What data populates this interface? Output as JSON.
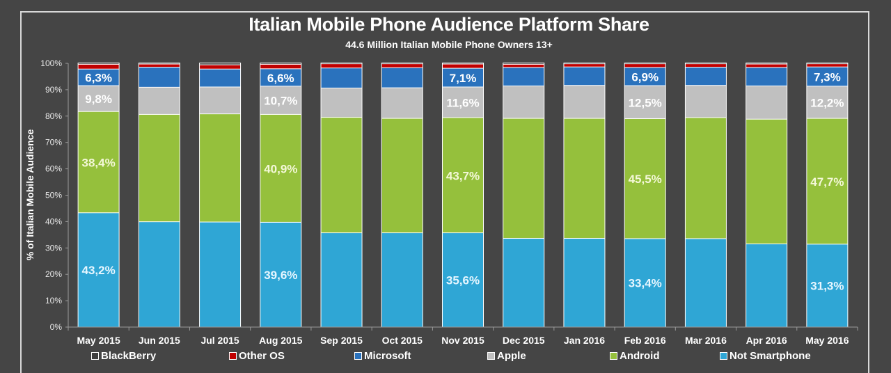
{
  "chart_data": {
    "type": "bar",
    "stacked": true,
    "title": "Italian Mobile Phone Audience Platform Share",
    "subtitle": "44.6 Million Italian Mobile Phone Owners 13+",
    "xlabel": "",
    "ylabel": "% of Italian Mobile Audience",
    "ylim": [
      0,
      100
    ],
    "yticks": [
      "0%",
      "10%",
      "20%",
      "30%",
      "40%",
      "50%",
      "60%",
      "70%",
      "80%",
      "90%",
      "100%"
    ],
    "grid": false,
    "legend_position": "bottom",
    "categories": [
      "May 2015",
      "Jun 2015",
      "Jul 2015",
      "Aug 2015",
      "Sep 2015",
      "Oct 2015",
      "Nov 2015",
      "Dec 2015",
      "Jan 2016",
      "Feb 2016",
      "Mar 2016",
      "Apr 2016",
      "May 2016"
    ],
    "series": [
      {
        "name": "Not Smartphone",
        "color": "#2fa6d5",
        "values": [
          43.2,
          39.8,
          39.7,
          39.6,
          35.6,
          35.6,
          35.6,
          33.5,
          33.5,
          33.4,
          33.4,
          31.4,
          31.3
        ],
        "labels": [
          "43,2%",
          null,
          null,
          "39,6%",
          null,
          null,
          "35,6%",
          null,
          null,
          "33,4%",
          null,
          null,
          "31,3%"
        ],
        "label_color": "#e6f6ff"
      },
      {
        "name": "Android",
        "color": "#95c03c",
        "values": [
          38.4,
          40.7,
          41.0,
          40.9,
          43.8,
          43.4,
          43.7,
          45.5,
          45.5,
          45.5,
          45.9,
          47.3,
          47.7
        ],
        "labels": [
          "38,4%",
          null,
          null,
          "40,9%",
          null,
          null,
          "43,7%",
          null,
          null,
          "45,5%",
          null,
          null,
          "47,7%"
        ],
        "label_color": "#f4f8d8"
      },
      {
        "name": "Apple",
        "color": "#c0c0c0",
        "values": [
          9.8,
          10.3,
          10.2,
          10.7,
          11.1,
          11.6,
          11.6,
          12.3,
          12.5,
          12.5,
          12.2,
          12.6,
          12.2
        ],
        "labels": [
          "9,8%",
          null,
          null,
          "10,7%",
          null,
          null,
          "11,6%",
          null,
          null,
          "12,5%",
          null,
          null,
          "12,2%"
        ],
        "label_color": "#ffffff"
      },
      {
        "name": "Microsoft",
        "color": "#2a72bd",
        "values": [
          6.3,
          7.6,
          6.8,
          6.6,
          7.6,
          7.6,
          7.1,
          7.0,
          7.0,
          6.9,
          6.9,
          7.0,
          7.3
        ],
        "labels": [
          "6,3%",
          null,
          null,
          "6,6%",
          null,
          null,
          "7,1%",
          null,
          null,
          "6,9%",
          null,
          null,
          "7,3%"
        ],
        "label_color": "#ffffff"
      },
      {
        "name": "Other OS",
        "color": "#c00000",
        "values": [
          1.8,
          1.2,
          1.6,
          1.7,
          1.6,
          1.5,
          1.6,
          1.2,
          1.2,
          1.4,
          1.3,
          1.3,
          1.2
        ],
        "labels": []
      },
      {
        "name": "BlackBerry",
        "color": "#404040",
        "values": [
          0.5,
          0.4,
          0.7,
          0.5,
          0.3,
          0.3,
          0.4,
          0.5,
          0.3,
          0.3,
          0.3,
          0.4,
          0.3
        ],
        "labels": []
      }
    ]
  },
  "legend": {
    "order": [
      "BlackBerry",
      "Other OS",
      "Microsoft",
      "Apple",
      "Android",
      "Not Smartphone"
    ]
  }
}
